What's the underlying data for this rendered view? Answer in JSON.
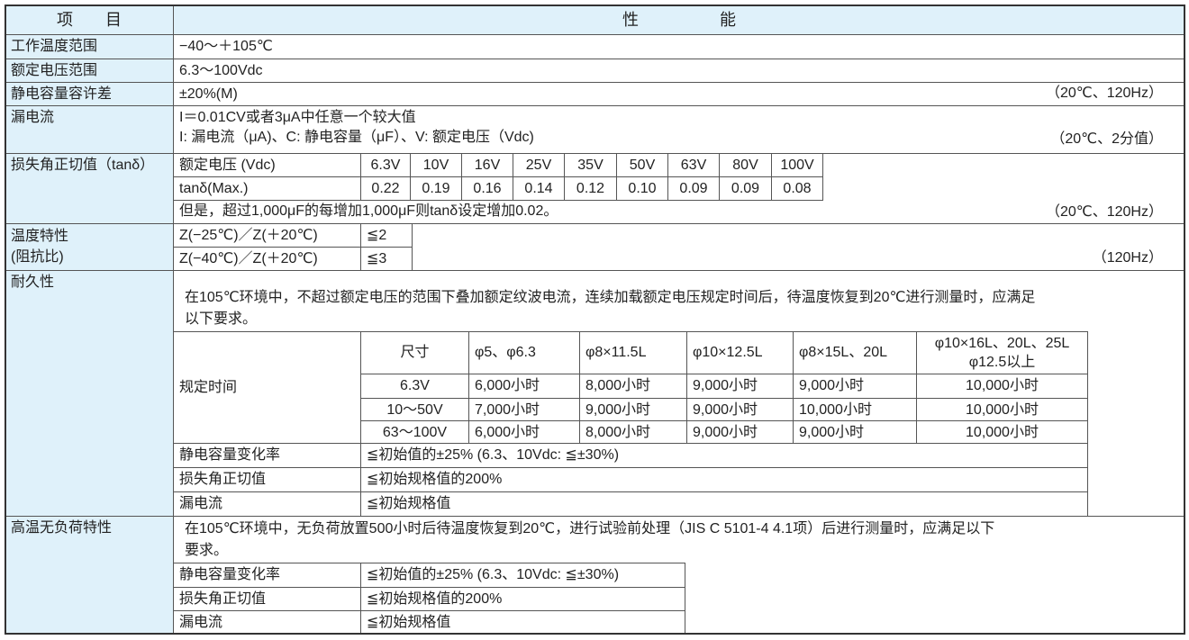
{
  "header": {
    "item": "项　　目",
    "performance": "性　　　　　能"
  },
  "rows": {
    "op_temp": {
      "label": "工作温度范围",
      "value": "−40～＋105℃"
    },
    "rated_voltage": {
      "label": "额定电压范围",
      "value": "6.3～100Vdc"
    },
    "cap_tol": {
      "label": "静电容量容许差",
      "value": "±20%(M)",
      "note": "（20℃、120Hz）"
    },
    "leakage": {
      "label": "漏电流",
      "line1": "I＝0.01CV或者3μA中任意一个较大值",
      "line2": "I: 漏电流（μA)、C: 静电容量（μF）、V: 额定电压（Vdc)",
      "note": "（20℃、2分值）"
    },
    "tan": {
      "label": "损失角正切值（tanδ）",
      "voltage_label": "额定电压 (Vdc)",
      "tan_label": "tanδ(Max.)",
      "voltages": [
        "6.3V",
        "10V",
        "16V",
        "25V",
        "35V",
        "50V",
        "63V",
        "80V",
        "100V"
      ],
      "values": [
        "0.22",
        "0.19",
        "0.16",
        "0.14",
        "0.12",
        "0.10",
        "0.09",
        "0.09",
        "0.08"
      ],
      "remark": "但是，超过1,000μF的每增加1,000μF则tanδ设定增加0.02。",
      "note": "（20℃、120Hz）"
    },
    "temp_char": {
      "label": "温度特性\n(阻抗比)",
      "label1": "温度特性",
      "label2": "(阻抗比)",
      "items": [
        {
          "cond": "Z(−25℃)／Z(＋20℃)",
          "value": "≦2"
        },
        {
          "cond": "Z(−40℃)／Z(＋20℃)",
          "value": "≦3"
        }
      ],
      "note": "（120Hz）"
    },
    "endurance": {
      "label": "耐久性",
      "text1": "在105℃环境中，不超过额定电压的范围下叠加额定纹波电流，连续加载额定电压规定时间后，待温度恢复到20℃进行测量时，应满足",
      "text2": "以下要求。",
      "time_label": "规定时间",
      "size_label": "尺寸",
      "sizes": [
        "φ5、φ6.3",
        "φ8×11.5L",
        "φ10×12.5L",
        "φ8×15L、20L",
        "φ10×16L、20L、25L",
        "φ12.5以上"
      ],
      "time_rows": [
        {
          "voltage": "6.3V",
          "hours": [
            "6,000小时",
            "8,000小时",
            "9,000小时",
            "9,000小时",
            "10,000小时"
          ]
        },
        {
          "voltage": "10～50V",
          "hours": [
            "7,000小时",
            "9,000小时",
            "9,000小时",
            "10,000小时",
            "10,000小时"
          ]
        },
        {
          "voltage": "63～100V",
          "hours": [
            "6,000小时",
            "8,000小时",
            "9,000小时",
            "9,000小时",
            "10,000小时"
          ]
        }
      ],
      "criteria": [
        {
          "label": "静电容量变化率",
          "value": "≦初始值的±25% (6.3、10Vdc: ≦±30%)"
        },
        {
          "label": "损失角正切值",
          "value": "≦初始规格值的200%"
        },
        {
          "label": "漏电流",
          "value": "≦初始规格值"
        }
      ]
    },
    "shelf": {
      "label": "高温无负荷特性",
      "text1": "在105℃环境中，无负荷放置500小时后待温度恢复到20℃，进行试验前处理（JIS C 5101-4 4.1项）后进行测量时，应满足以下",
      "text2": "要求。",
      "criteria": [
        {
          "label": "静电容量变化率",
          "value": "≦初始值的±25% (6.3、10Vdc: ≦±30%)"
        },
        {
          "label": "损失角正切值",
          "value": "≦初始规格值的200%"
        },
        {
          "label": "漏电流",
          "value": "≦初始规格值"
        }
      ]
    }
  }
}
